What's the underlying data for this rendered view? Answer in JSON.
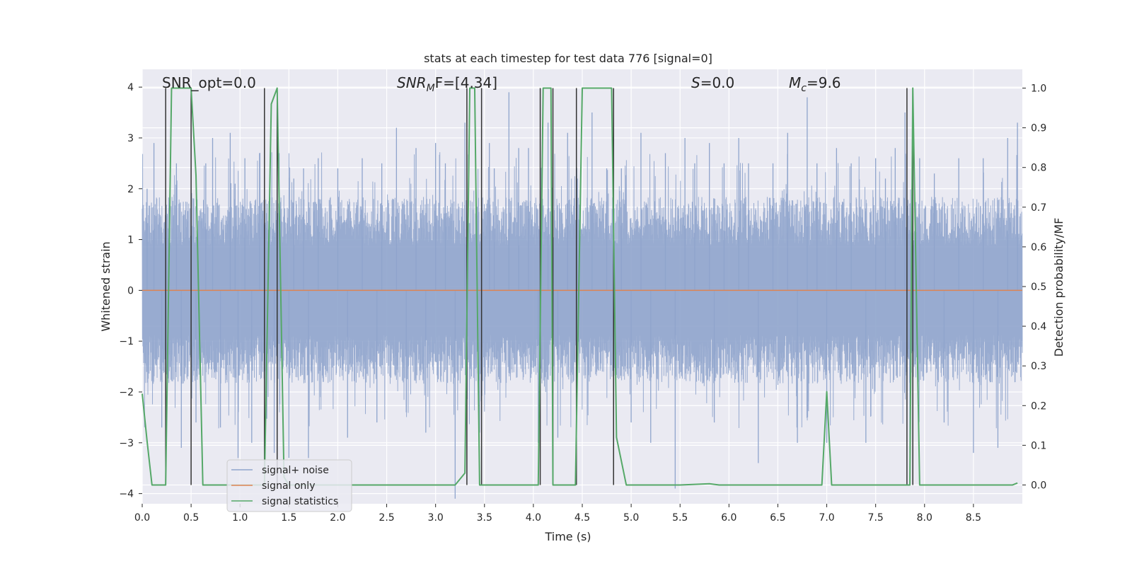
{
  "chart_data": {
    "type": "line",
    "title": "stats at each timestep for test data 776 [signal=0]",
    "xlabel": "Time (s)",
    "ylabel": "Whitened strain",
    "y2label": "Detection probability/MF",
    "xlim": [
      0.0,
      9.0
    ],
    "ylim": [
      -4.2,
      4.35
    ],
    "y2lim": [
      -0.0473,
      1.0473
    ],
    "xticks": [
      0.0,
      0.5,
      1.0,
      1.5,
      2.0,
      2.5,
      3.0,
      3.5,
      4.0,
      4.5,
      5.0,
      5.5,
      6.0,
      6.5,
      7.0,
      7.5,
      8.0,
      8.5
    ],
    "xtick_labels": [
      "0.0",
      "0.5",
      "1.0",
      "1.5",
      "2.0",
      "2.5",
      "3.0",
      "3.5",
      "4.0",
      "4.5",
      "5.0",
      "5.5",
      "6.0",
      "6.5",
      "7.0",
      "7.5",
      "8.0",
      "8.5"
    ],
    "yticks": [
      4,
      3,
      2,
      1,
      0,
      -1,
      -2,
      -3,
      -4
    ],
    "ytick_labels": [
      "4",
      "3",
      "2",
      "1",
      "0",
      "−1",
      "−2",
      "−3",
      "−4"
    ],
    "y2ticks": [
      1.0,
      0.9,
      0.8,
      0.7,
      0.6,
      0.5,
      0.4,
      0.3,
      0.2,
      0.1,
      0.0
    ],
    "y2tick_labels": [
      "1.0",
      "0.9",
      "0.8",
      "0.7",
      "0.6",
      "0.5",
      "0.4",
      "0.3",
      "0.2",
      "0.1",
      "0.0"
    ],
    "annotations": {
      "snr_opt": "SNR_opt=0.0",
      "snr_mf_prefix": "SNR",
      "snr_mf_sub": "M",
      "snr_mf_suffix": "F=[4.34]",
      "s_label": "S",
      "s_value": "=0.0",
      "mc_label": "M",
      "mc_sub": "c",
      "mc_value": "=9.6"
    },
    "legend": {
      "position": "lower-left",
      "entries": [
        "signal+ noise",
        "signal only",
        "signal statistics"
      ]
    },
    "colors": {
      "noise": "#8fa4cc",
      "signal": "#dd8452",
      "stats": "#55a868",
      "vlines": "#333333",
      "background": "#eaeaf2",
      "grid": "#ffffff"
    },
    "series": [
      {
        "name": "signal+ noise",
        "amplitude_typical": 1.6,
        "amplitude_peak": 3.9,
        "peaks": [
          [
            0.05,
            2.0
          ],
          [
            0.12,
            2.9
          ],
          [
            0.2,
            -2.7
          ],
          [
            0.35,
            2.5
          ],
          [
            0.4,
            -3.1
          ],
          [
            0.55,
            -2.6
          ],
          [
            0.65,
            2.5
          ],
          [
            0.72,
            3.0
          ],
          [
            0.8,
            -2.7
          ],
          [
            0.9,
            3.1
          ],
          [
            0.95,
            2.1
          ],
          [
            0.98,
            -3.3
          ],
          [
            1.05,
            2.6
          ],
          [
            1.12,
            -3.0
          ],
          [
            1.2,
            2.7
          ],
          [
            1.35,
            -3.2
          ],
          [
            1.4,
            2.7
          ],
          [
            1.5,
            -3.3
          ],
          [
            1.55,
            2.2
          ],
          [
            1.65,
            2.4
          ],
          [
            1.7,
            -3.3
          ],
          [
            1.8,
            2.6
          ],
          [
            2.0,
            2.4
          ],
          [
            2.1,
            -2.9
          ],
          [
            2.25,
            2.6
          ],
          [
            2.4,
            -2.6
          ],
          [
            2.45,
            2.5
          ],
          [
            2.6,
            3.2
          ],
          [
            2.7,
            -2.4
          ],
          [
            2.8,
            2.8
          ],
          [
            2.9,
            -2.8
          ],
          [
            3.0,
            2.9
          ],
          [
            3.1,
            2.5
          ],
          [
            3.2,
            -4.1
          ],
          [
            3.3,
            3.3
          ],
          [
            3.45,
            -2.8
          ],
          [
            3.55,
            2.9
          ],
          [
            3.6,
            2.4
          ],
          [
            3.75,
            3.9
          ],
          [
            3.85,
            2.8
          ],
          [
            3.95,
            2.8
          ],
          [
            4.05,
            -3.0
          ],
          [
            4.15,
            3.3
          ],
          [
            4.25,
            -2.9
          ],
          [
            4.35,
            3.1
          ],
          [
            4.45,
            2.2
          ],
          [
            4.6,
            3.5
          ],
          [
            4.75,
            2.4
          ],
          [
            4.9,
            2.4
          ],
          [
            5.0,
            -2.6
          ],
          [
            5.1,
            3.1
          ],
          [
            5.2,
            -3.0
          ],
          [
            5.35,
            2.7
          ],
          [
            5.45,
            -3.9
          ],
          [
            5.55,
            3.0
          ],
          [
            5.65,
            2.5
          ],
          [
            5.8,
            2.9
          ],
          [
            5.85,
            -2.6
          ],
          [
            5.95,
            2.5
          ],
          [
            6.1,
            3.0
          ],
          [
            6.2,
            2.5
          ],
          [
            6.3,
            -3.4
          ],
          [
            6.45,
            2.5
          ],
          [
            6.6,
            3.1
          ],
          [
            6.7,
            -3.0
          ],
          [
            6.8,
            3.8
          ],
          [
            6.9,
            2.5
          ],
          [
            7.0,
            -3.0
          ],
          [
            7.1,
            2.8
          ],
          [
            7.25,
            2.5
          ],
          [
            7.4,
            -3.0
          ],
          [
            7.5,
            2.6
          ],
          [
            7.6,
            2.2
          ],
          [
            7.7,
            2.8
          ],
          [
            7.8,
            3.5
          ],
          [
            7.85,
            -3.2
          ],
          [
            7.95,
            2.6
          ],
          [
            8.1,
            2.3
          ],
          [
            8.2,
            -2.6
          ],
          [
            8.35,
            2.6
          ],
          [
            8.5,
            -3.2
          ],
          [
            8.6,
            2.6
          ],
          [
            8.75,
            -3.1
          ],
          [
            8.85,
            3.0
          ],
          [
            8.95,
            3.3
          ]
        ]
      },
      {
        "name": "signal only",
        "x": [
          0.0,
          9.0
        ],
        "y": [
          0.0,
          0.0
        ]
      },
      {
        "name": "signal statistics",
        "x": [
          0.0,
          0.05,
          0.1,
          0.2,
          0.24,
          0.3,
          0.5,
          0.55,
          0.62,
          0.7,
          1.0,
          1.25,
          1.32,
          1.38,
          1.45,
          1.5,
          2.0,
          3.0,
          3.2,
          3.3,
          3.35,
          3.4,
          3.45,
          3.47,
          3.55,
          3.6,
          4.0,
          4.05,
          4.1,
          4.18,
          4.2,
          4.25,
          4.3,
          4.43,
          4.5,
          4.65,
          4.8,
          4.85,
          4.95,
          5.0,
          5.5,
          5.8,
          5.9,
          6.5,
          6.95,
          7.0,
          7.05,
          7.1,
          7.5,
          7.8,
          7.85,
          7.88,
          7.95,
          8.0,
          8.3,
          8.5,
          8.9,
          8.95
        ],
        "y": [
          0.23,
          0.11,
          0.0,
          0.0,
          0.0,
          1.0,
          1.0,
          0.78,
          0.0,
          0.0,
          0.0,
          0.0,
          0.96,
          1.0,
          0.02,
          0.0,
          0.0,
          0.0,
          0.0,
          0.03,
          1.0,
          1.0,
          0.0,
          0.0,
          0.0,
          0.0,
          0.0,
          0.0,
          1.0,
          1.0,
          0.0,
          0.0,
          0.0,
          0.0,
          1.0,
          1.0,
          1.0,
          0.12,
          0.0,
          0.0,
          0.0,
          0.003,
          0.0,
          0.0,
          0.0,
          0.235,
          0.0,
          0.0,
          0.0,
          0.0,
          0.0,
          1.0,
          0.0,
          0.0,
          0.0,
          0.0,
          0.0,
          0.005
        ]
      }
    ],
    "vlines_x": [
      0.24,
      0.5,
      1.25,
      1.38,
      3.32,
      3.47,
      4.07,
      4.2,
      4.44,
      4.82,
      7.82,
      7.88
    ]
  }
}
